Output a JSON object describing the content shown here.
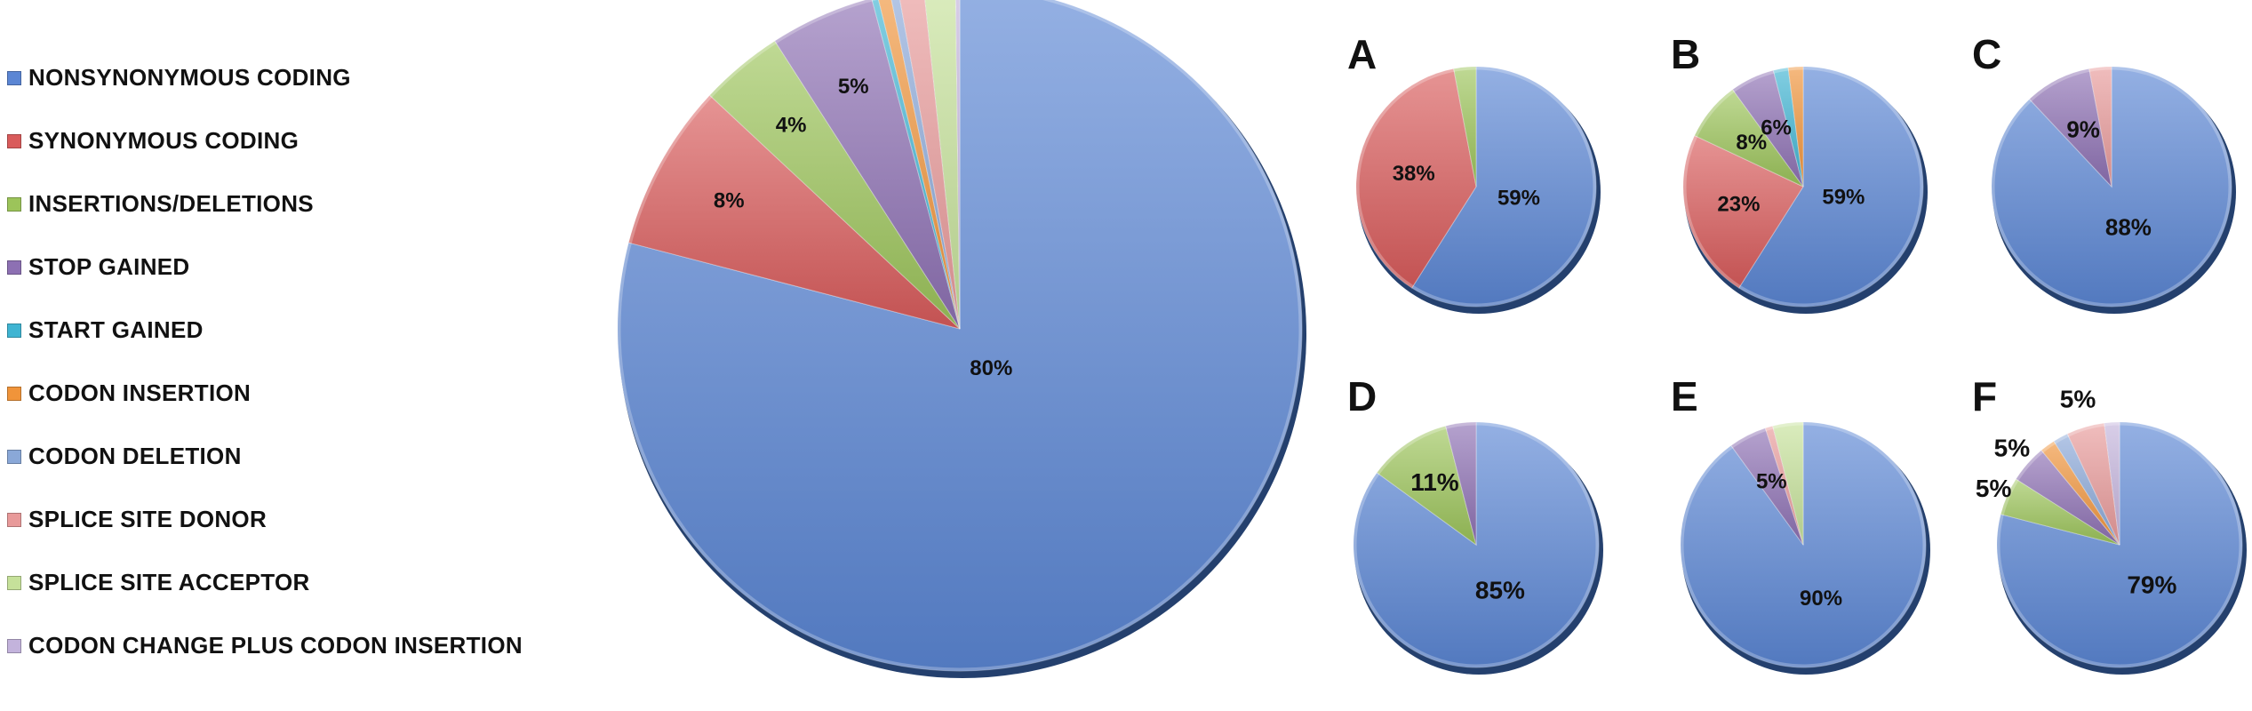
{
  "legend": [
    {
      "label": "NONSYNONYMOUS CODING",
      "color": "#5b86d4"
    },
    {
      "label": "SYNONYMOUS CODING",
      "color": "#d95b5b"
    },
    {
      "label": "INSERTIONS/DELETIONS",
      "color": "#9cc45a"
    },
    {
      "label": "STOP GAINED",
      "color": "#8d70b3"
    },
    {
      "label": "START GAINED",
      "color": "#3fb4d2"
    },
    {
      "label": "CODON INSERTION",
      "color": "#f0943a"
    },
    {
      "label": "CODON DELETION",
      "color": "#8aa8d8"
    },
    {
      "label": "SPLICE SITE DONOR",
      "color": "#e89a9a"
    },
    {
      "label": "SPLICE SITE ACCEPTOR",
      "color": "#c6e19a"
    },
    {
      "label": "CODON CHANGE PLUS CODON INSERTION",
      "color": "#c3b3dc"
    }
  ],
  "chart_data": [
    {
      "type": "pie",
      "panel": "",
      "categories": [
        "NONSYNONYMOUS CODING",
        "SYNONYMOUS CODING",
        "INSERTIONS/DELETIONS",
        "STOP GAINED",
        "START GAINED",
        "CODON INSERTION",
        "CODON DELETION",
        "SPLICE SITE DONOR",
        "SPLICE SITE ACCEPTOR",
        "CODON CHANGE PLUS CODON INSERTION"
      ],
      "values": [
        80,
        8,
        4,
        5,
        0.3,
        0.6,
        0.4,
        1.2,
        1.5,
        0.2
      ],
      "labels": [
        "80%",
        "8%",
        "4%",
        "5%",
        "",
        "",
        "",
        "",
        "",
        ""
      ]
    },
    {
      "type": "pie",
      "panel": "A",
      "categories": [
        "NONSYNONYMOUS CODING",
        "SYNONYMOUS CODING",
        "INSERTIONS/DELETIONS"
      ],
      "values": [
        59,
        38,
        3
      ],
      "labels": [
        "59%",
        "38%",
        ""
      ]
    },
    {
      "type": "pie",
      "panel": "B",
      "categories": [
        "NONSYNONYMOUS CODING",
        "SYNONYMOUS CODING",
        "INSERTIONS/DELETIONS",
        "STOP GAINED",
        "START GAINED",
        "CODON INSERTION"
      ],
      "values": [
        59,
        23,
        8,
        6,
        2,
        2
      ],
      "labels": [
        "59%",
        "23%",
        "8%",
        "6%",
        "",
        ""
      ]
    },
    {
      "type": "pie",
      "panel": "C",
      "categories": [
        "NONSYNONYMOUS CODING",
        "STOP GAINED",
        "SPLICE SITE DONOR"
      ],
      "values": [
        88,
        9,
        3
      ],
      "labels": [
        "88%",
        "9%",
        ""
      ]
    },
    {
      "type": "pie",
      "panel": "D",
      "categories": [
        "NONSYNONYMOUS CODING",
        "INSERTIONS/DELETIONS",
        "STOP GAINED"
      ],
      "values": [
        85,
        11,
        4
      ],
      "labels": [
        "85%",
        "11%",
        ""
      ]
    },
    {
      "type": "pie",
      "panel": "E",
      "categories": [
        "NONSYNONYMOUS CODING",
        "STOP GAINED",
        "SPLICE SITE DONOR",
        "SPLICE SITE ACCEPTOR"
      ],
      "values": [
        90,
        5,
        1,
        4
      ],
      "labels": [
        "90%",
        "5%",
        "",
        ""
      ]
    },
    {
      "type": "pie",
      "panel": "F",
      "categories": [
        "NONSYNONYMOUS CODING",
        "INSERTIONS/DELETIONS",
        "STOP GAINED",
        "CODON INSERTION",
        "CODON DELETION",
        "SPLICE SITE DONOR",
        "CODON CHANGE PLUS CODON INSERTION"
      ],
      "values": [
        79,
        5,
        5,
        2,
        2,
        5,
        2
      ],
      "labels": [
        "79%",
        "5%",
        "5%",
        "",
        "",
        "5%",
        ""
      ]
    }
  ]
}
